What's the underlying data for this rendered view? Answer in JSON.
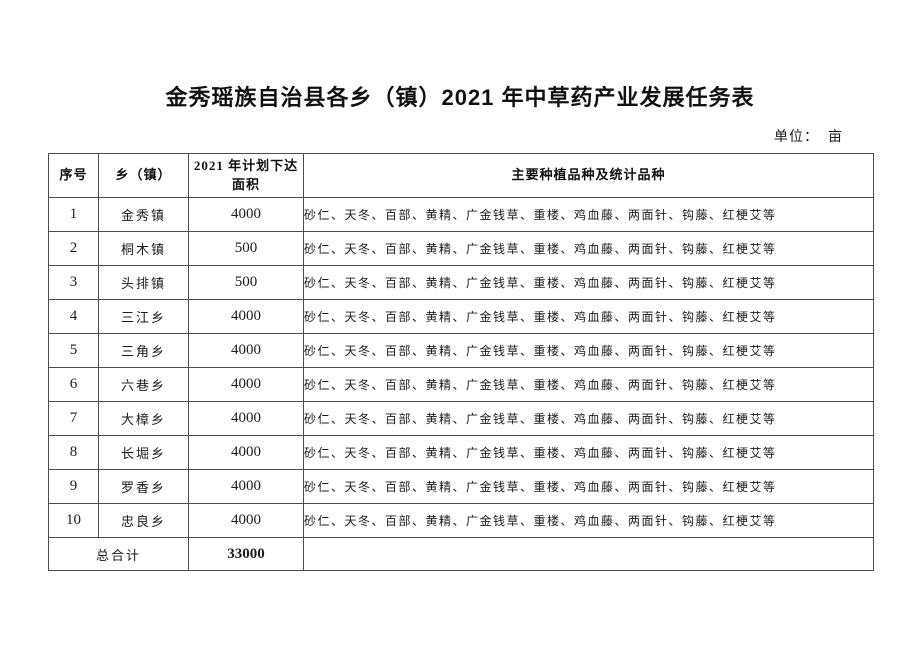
{
  "page": {
    "title": "金秀瑶族自治县各乡（镇）2021 年中草药产业发展任务表",
    "unit_label": "单位：  亩"
  },
  "table": {
    "headers": {
      "no": "序号",
      "town": "乡（镇）",
      "area": "2021 年计划下达面积",
      "varieties": "主要种植品种及统计品种"
    },
    "rows": [
      {
        "no": "1",
        "town": "金秀镇",
        "area": "4000",
        "varieties": "砂仁、天冬、百部、黄精、广金钱草、重楼、鸡血藤、两面针、钩藤、红梗艾等"
      },
      {
        "no": "2",
        "town": "桐木镇",
        "area": "500",
        "varieties": "砂仁、天冬、百部、黄精、广金钱草、重楼、鸡血藤、两面针、钩藤、红梗艾等"
      },
      {
        "no": "3",
        "town": "头排镇",
        "area": "500",
        "varieties": "砂仁、天冬、百部、黄精、广金钱草、重楼、鸡血藤、两面针、钩藤、红梗艾等"
      },
      {
        "no": "4",
        "town": "三江乡",
        "area": "4000",
        "varieties": "砂仁、天冬、百部、黄精、广金钱草、重楼、鸡血藤、两面针、钩藤、红梗艾等"
      },
      {
        "no": "5",
        "town": "三角乡",
        "area": "4000",
        "varieties": "砂仁、天冬、百部、黄精、广金钱草、重楼、鸡血藤、两面针、钩藤、红梗艾等"
      },
      {
        "no": "6",
        "town": "六巷乡",
        "area": "4000",
        "varieties": "砂仁、天冬、百部、黄精、广金钱草、重楼、鸡血藤、两面针、钩藤、红梗艾等"
      },
      {
        "no": "7",
        "town": "大樟乡",
        "area": "4000",
        "varieties": "砂仁、天冬、百部、黄精、广金钱草、重楼、鸡血藤、两面针、钩藤、红梗艾等"
      },
      {
        "no": "8",
        "town": "长堀乡",
        "area": "4000",
        "varieties": "砂仁、天冬、百部、黄精、广金钱草、重楼、鸡血藤、两面针、钩藤、红梗艾等"
      },
      {
        "no": "9",
        "town": "罗香乡",
        "area": "4000",
        "varieties": "砂仁、天冬、百部、黄精、广金钱草、重楼、鸡血藤、两面针、钩藤、红梗艾等"
      },
      {
        "no": "10",
        "town": "忠良乡",
        "area": "4000",
        "varieties": "砂仁、天冬、百部、黄精、广金钱草、重楼、鸡血藤、两面针、钩藤、红梗艾等"
      }
    ],
    "total": {
      "label": "总合计",
      "area": "33000",
      "varieties": ""
    }
  }
}
